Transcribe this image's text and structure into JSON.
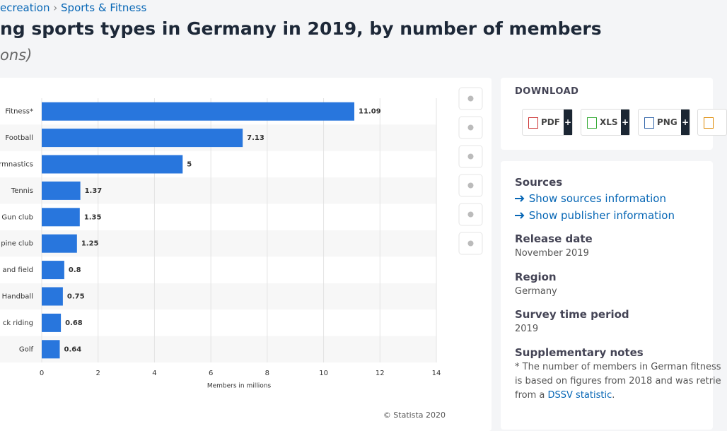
{
  "breadcrumb": {
    "parent": "ecreation",
    "current": "Sports & Fitness"
  },
  "header": {
    "title": "ng sports types in Germany in 2019, by number of members",
    "subtitle": "ons)"
  },
  "chart_data": {
    "type": "bar",
    "orientation": "horizontal",
    "categories": [
      "Fitness*",
      "Football",
      "rmnastics",
      "Tennis",
      "Gun club",
      "pine club",
      "and field",
      "Handball",
      "ck riding",
      "Golf"
    ],
    "values": [
      11.09,
      7.13,
      5,
      1.37,
      1.35,
      1.25,
      0.8,
      0.75,
      0.68,
      0.64
    ],
    "color": "#2876dd",
    "xlim": [
      0,
      14
    ],
    "xticks": [
      0,
      2,
      4,
      6,
      8,
      10,
      12,
      14
    ],
    "xlabel": "Members in millions",
    "grid": true,
    "credit": "© Statista 2020"
  },
  "download": {
    "title": "DOWNLOAD",
    "buttons": [
      "PDF",
      "XLS",
      "PNG"
    ]
  },
  "details": {
    "sources_title": "Sources",
    "sources_link": "Show sources information",
    "publisher_link": "Show publisher information",
    "release_title": "Release date",
    "release": "November 2019",
    "region_title": "Region",
    "region": "Germany",
    "period_title": "Survey time period",
    "period": "2019",
    "notes_title": "Supplementary notes",
    "notes_lines": [
      "* The number of members in German fitness",
      "is based on figures from 2018 and was retrie"
    ],
    "notes_prefix": "from a",
    "notes_link": "DSSV statistic",
    "notes_suffix": "."
  }
}
